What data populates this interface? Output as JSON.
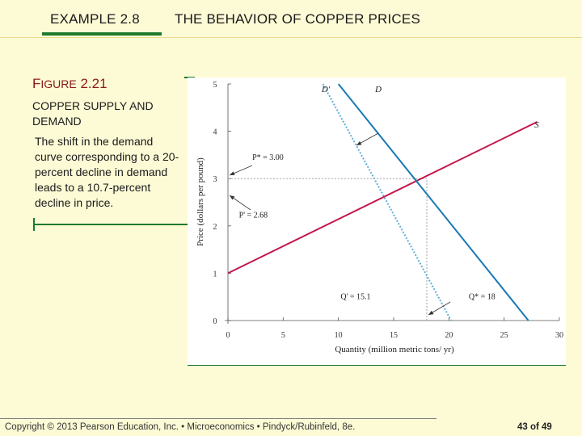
{
  "header": {
    "example_label": "EXAMPLE 2.8",
    "title": "THE BEHAVIOR OF COPPER PRICES"
  },
  "figure": {
    "label_prefix": "F",
    "label_word": "IGURE",
    "label_number": "2.21",
    "title": "COPPER SUPPLY AND DEMAND",
    "description": "The shift in the demand curve corresponding to a 20-percent decline in demand leads to a 10.7-percent decline in price."
  },
  "chart_data": {
    "type": "line",
    "xlabel": "Quantity (million metric tons/ yr)",
    "ylabel": "Price (dollars per pound)",
    "xlim": [
      0,
      30
    ],
    "ylim": [
      0,
      5
    ],
    "x_ticks": [
      0,
      5,
      10,
      15,
      20,
      25,
      30
    ],
    "y_ticks": [
      0,
      1,
      2,
      3,
      4,
      5
    ],
    "series": [
      {
        "name": "S",
        "x": [
          0,
          28
        ],
        "y": [
          1.0,
          4.2
        ],
        "color": "#c4184a"
      },
      {
        "name": "D",
        "x": [
          10.0,
          27.2
        ],
        "y": [
          5.0,
          0.0
        ],
        "color": "#1a79b6"
      },
      {
        "name": "D'",
        "x": [
          8.6,
          20.2
        ],
        "y": [
          5.0,
          0.0
        ],
        "color": "#5fb0d4",
        "dash": true
      }
    ],
    "annotations": [
      {
        "text": "P* = 3.00",
        "x": 2.2,
        "y": 3.4
      },
      {
        "text": "P' = 2.68",
        "x": 1.0,
        "y": 2.18
      },
      {
        "text": "Q' = 15.1",
        "x": 10.2,
        "y": 0.45
      },
      {
        "text": "Q* = 18",
        "x": 21.8,
        "y": 0.45
      }
    ],
    "reference_lines": [
      {
        "axis": "y",
        "value": 3.0,
        "to_x": 18.0
      },
      {
        "axis": "x",
        "value": 18.0,
        "to_y": 3.0
      }
    ]
  },
  "footer": {
    "text": "Copyright © 2013 Pearson Education, Inc. • Microeconomics • Pindyck/Rubinfeld, 8e.",
    "page": "43 of 49"
  }
}
